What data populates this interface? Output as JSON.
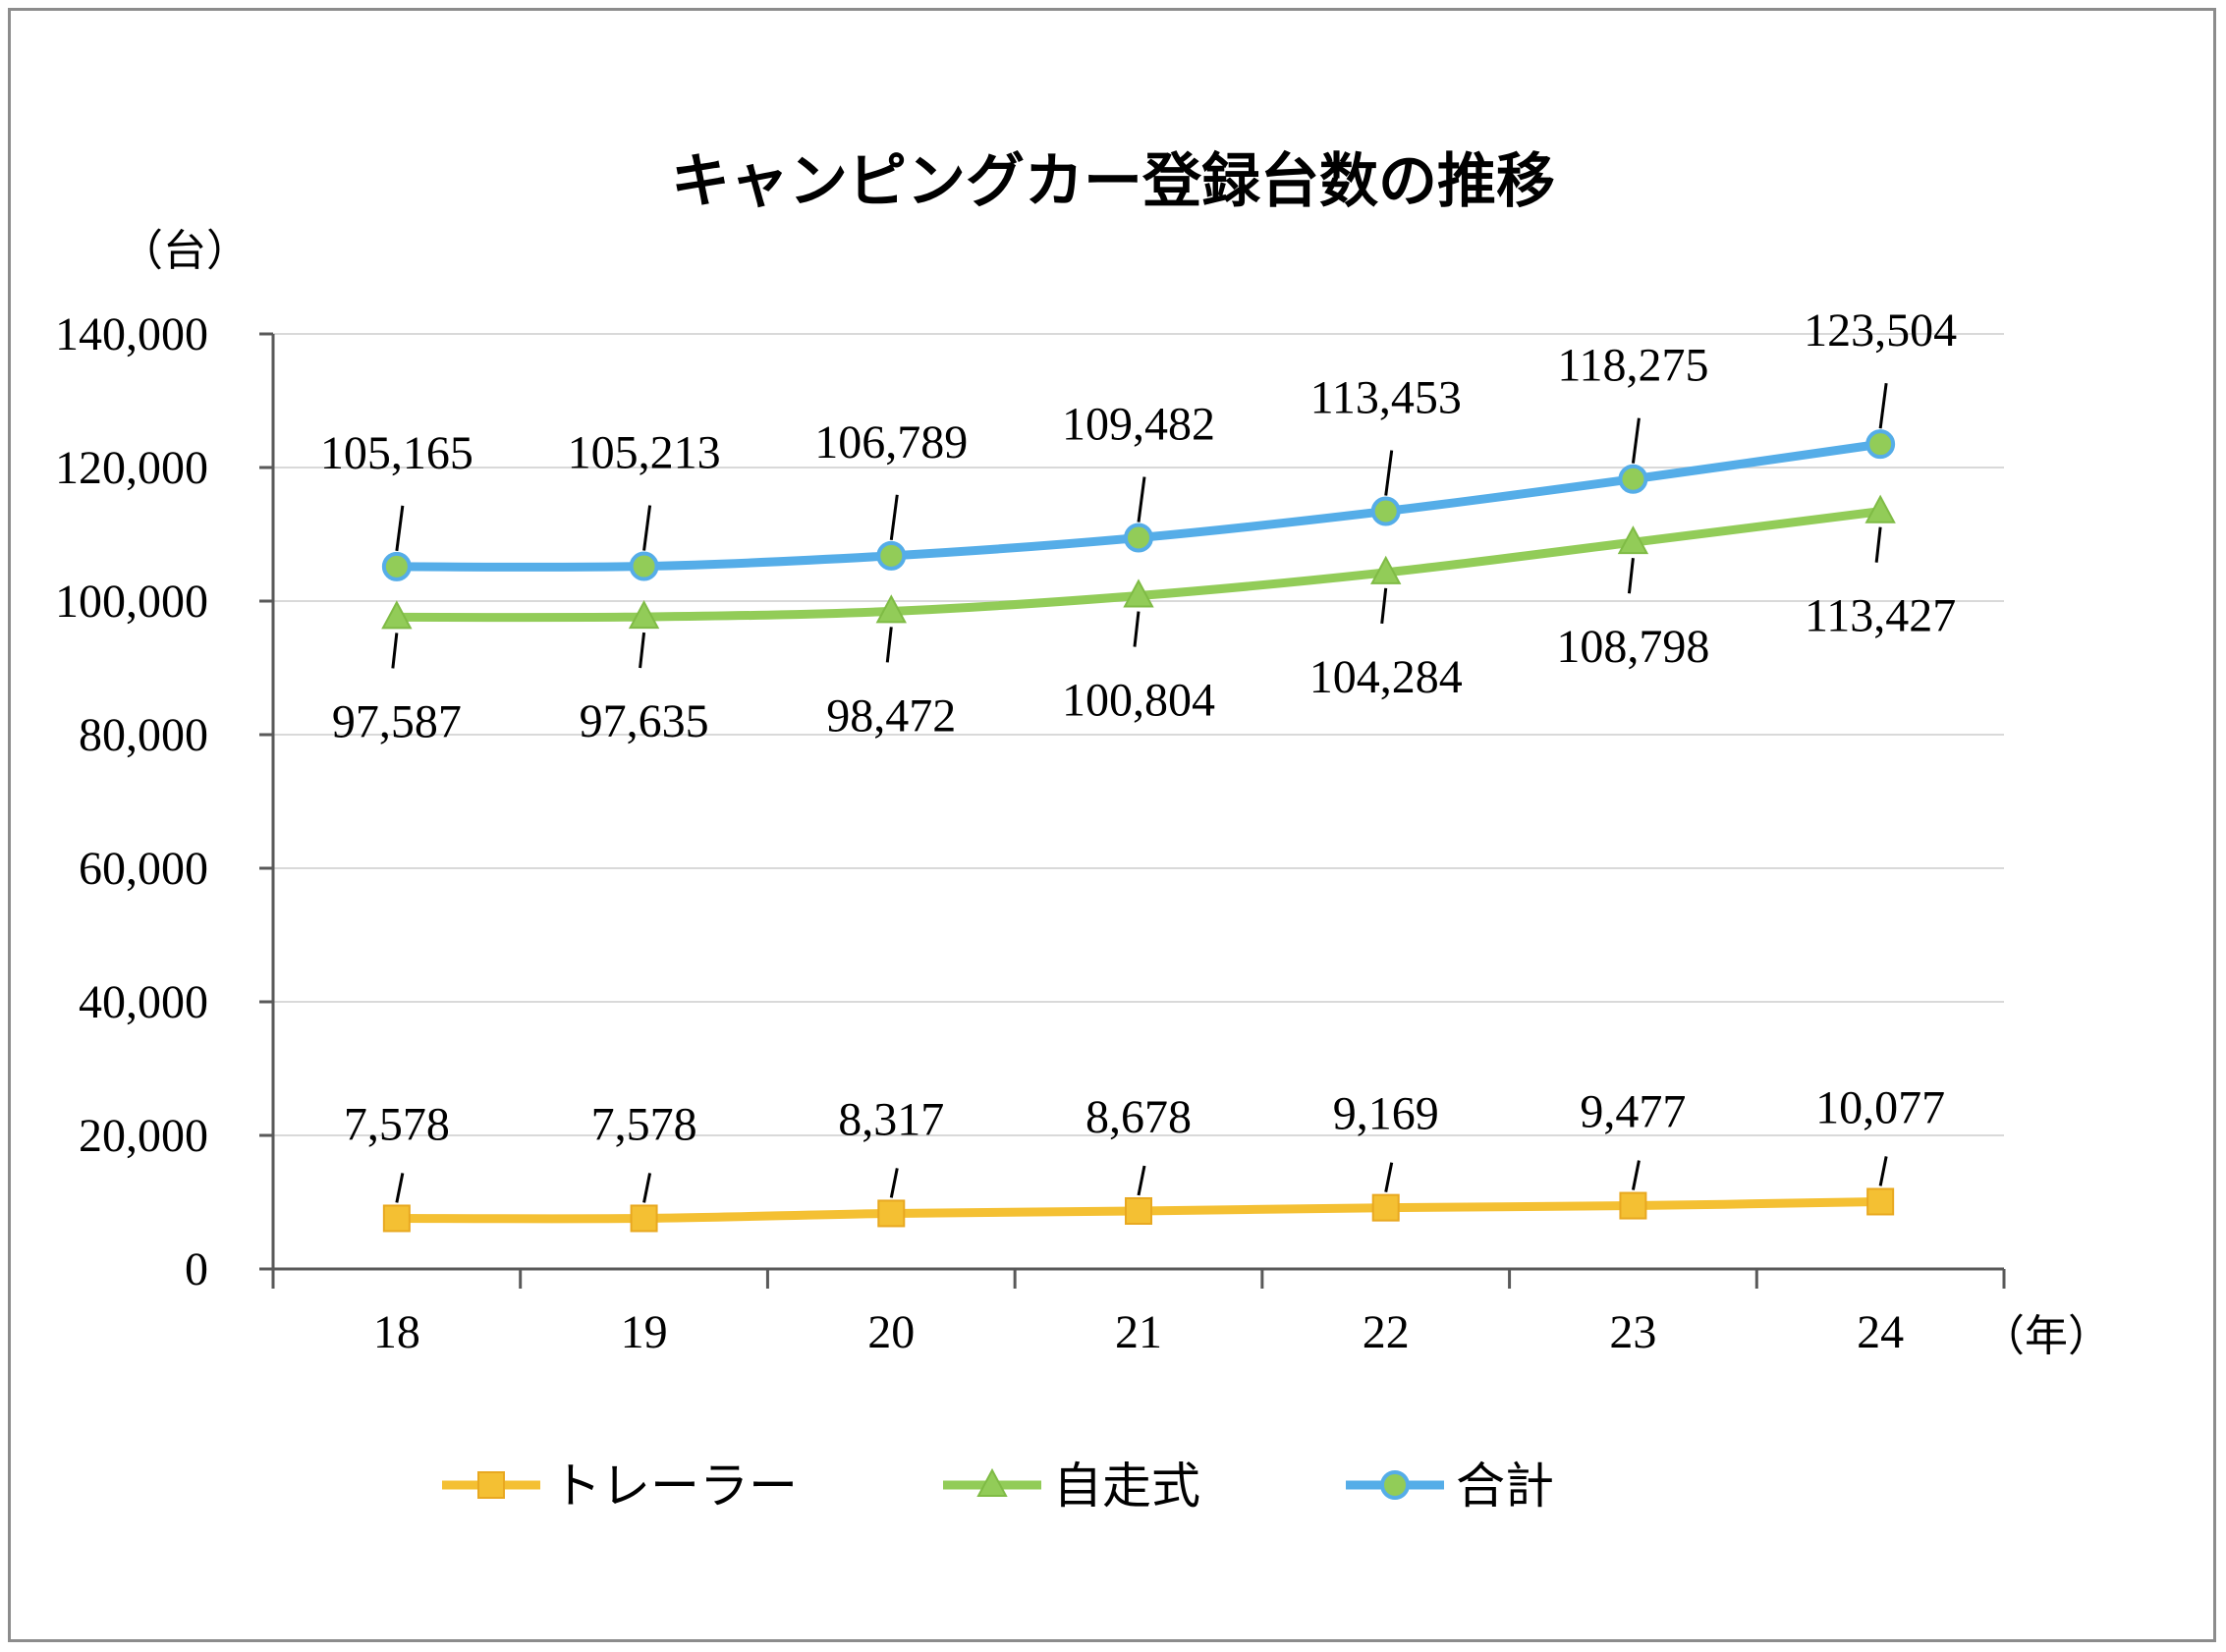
{
  "chart_data": {
    "type": "line",
    "title": "キャンピングカー登録台数の推移",
    "ylabel": "（台）",
    "xlabel": "（年）",
    "ylim": [
      0,
      140000
    ],
    "y_ticks": [
      "0",
      "20,000",
      "40,000",
      "60,000",
      "80,000",
      "100,000",
      "120,000",
      "140,000"
    ],
    "categories": [
      "18",
      "19",
      "20",
      "21",
      "22",
      "23",
      "24"
    ],
    "grid": true,
    "legend_position": "bottom",
    "series": [
      {
        "name": "トレーラー",
        "color": "#f4c033",
        "marker": "square",
        "values": [
          7578,
          7578,
          8317,
          8678,
          9169,
          9477,
          10077
        ],
        "labels": [
          "7,578",
          "7,578",
          "8,317",
          "8,678",
          "9,169",
          "9,477",
          "10,077"
        ]
      },
      {
        "name": "自走式",
        "color": "#92cc58",
        "marker": "triangle",
        "values": [
          97587,
          97635,
          98472,
          100804,
          104284,
          108798,
          113427
        ],
        "labels": [
          "97,587",
          "97,635",
          "98,472",
          "100,804",
          "104,284",
          "108,798",
          "113,427"
        ]
      },
      {
        "name": "合計",
        "color": "#55ade8",
        "marker": "circle",
        "marker_fill": "#92cc58",
        "values": [
          105165,
          105213,
          106789,
          109482,
          113453,
          118275,
          123504
        ],
        "labels": [
          "105,165",
          "105,213",
          "106,789",
          "109,482",
          "113,453",
          "118,275",
          "123,504"
        ]
      }
    ]
  }
}
